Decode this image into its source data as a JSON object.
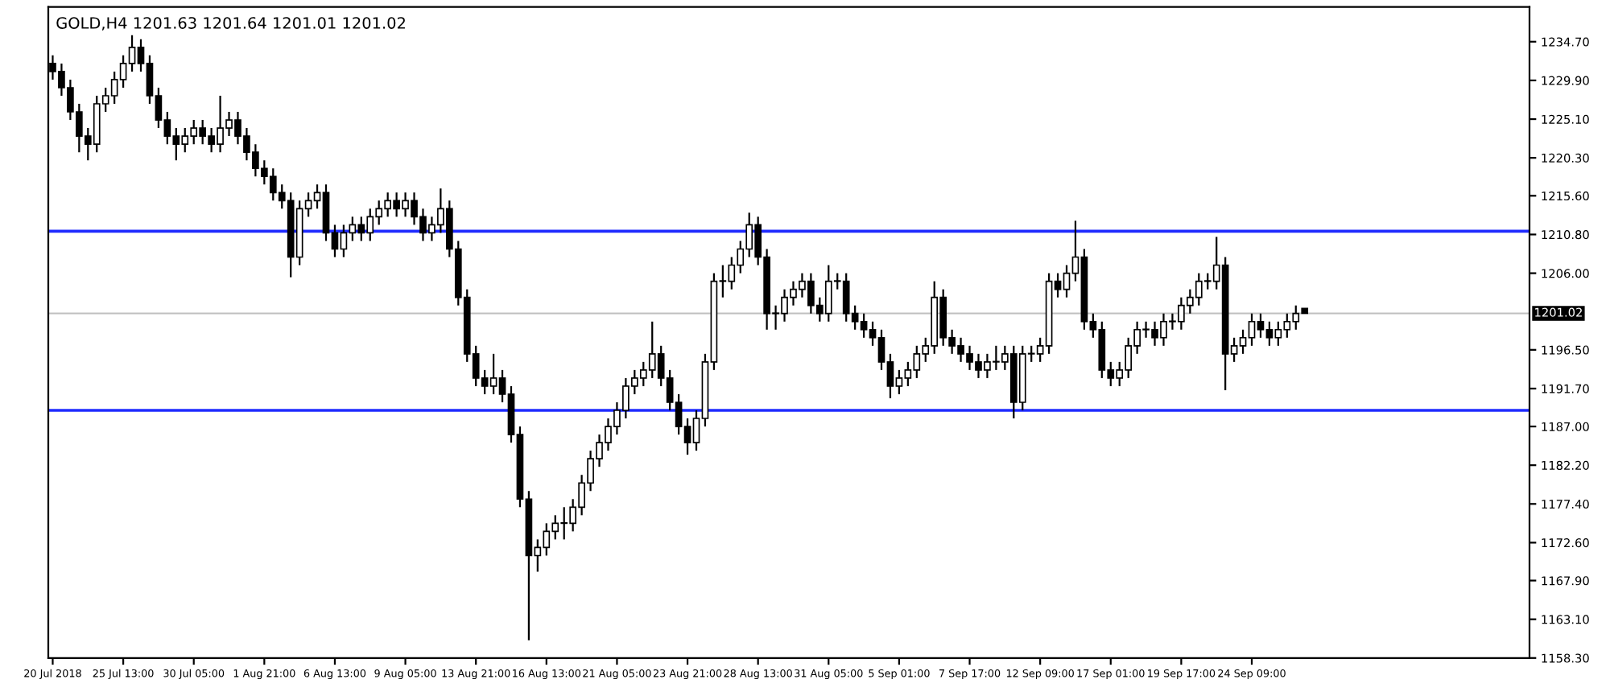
{
  "chart_data": {
    "type": "candlestick",
    "title": "GOLD,H4 1201.63 1201.64 1201.01 1201.02",
    "color": "#000000",
    "categories": [
      "20 Jul 2018",
      null,
      null,
      null,
      null,
      null,
      null,
      null,
      "25 Jul 13:00",
      null,
      null,
      null,
      null,
      null,
      null,
      null,
      "30 Jul 05:00",
      null,
      null,
      null,
      null,
      null,
      null,
      null,
      "1 Aug 21:00",
      null,
      null,
      null,
      null,
      null,
      null,
      null,
      "6 Aug 13:00",
      null,
      null,
      null,
      null,
      null,
      null,
      null,
      "9 Aug 05:00",
      null,
      null,
      null,
      null,
      null,
      null,
      null,
      "13 Aug 21:00",
      null,
      null,
      null,
      null,
      null,
      null,
      null,
      "16 Aug 13:00",
      null,
      null,
      null,
      null,
      null,
      null,
      null,
      "21 Aug 05:00",
      null,
      null,
      null,
      null,
      null,
      null,
      null,
      "23 Aug 21:00",
      null,
      null,
      null,
      null,
      null,
      null,
      null,
      "28 Aug 13:00",
      null,
      null,
      null,
      null,
      null,
      null,
      null,
      "31 Aug 05:00",
      null,
      null,
      null,
      null,
      null,
      null,
      null,
      "5 Sep 01:00",
      null,
      null,
      null,
      null,
      null,
      null,
      null,
      "7 Sep 17:00",
      null,
      null,
      null,
      null,
      null,
      null,
      null,
      "12 Sep 09:00",
      null,
      null,
      null,
      null,
      null,
      null,
      null,
      "17 Sep 01:00",
      null,
      null,
      null,
      null,
      null,
      null,
      null,
      "19 Sep 17:00",
      null,
      null,
      null,
      null,
      null,
      null,
      null,
      "24 Sep 09:00",
      null,
      null,
      null,
      null,
      null,
      null,
      null,
      null,
      null,
      null,
      null,
      null,
      null,
      null,
      null,
      null,
      null,
      null,
      null,
      null,
      null,
      null,
      null,
      null,
      null,
      null,
      null,
      null,
      null,
      null,
      null
    ],
    "ohlc": [
      [
        1232,
        1233,
        1230,
        1231
      ],
      [
        1231,
        1232,
        1228,
        1229
      ],
      [
        1229,
        1230,
        1225,
        1226
      ],
      [
        1226,
        1227,
        1221,
        1223
      ],
      [
        1223,
        1224,
        1220,
        1222
      ],
      [
        1222,
        1228,
        1221,
        1227
      ],
      [
        1227,
        1229,
        1226,
        1228
      ],
      [
        1228,
        1231,
        1227,
        1230
      ],
      [
        1230,
        1233,
        1229,
        1232
      ],
      [
        1232,
        1235.5,
        1231,
        1234
      ],
      [
        1234,
        1235,
        1231,
        1232
      ],
      [
        1232,
        1233,
        1227,
        1228
      ],
      [
        1228,
        1229,
        1224,
        1225
      ],
      [
        1225,
        1226,
        1222,
        1223
      ],
      [
        1223,
        1224,
        1220,
        1222
      ],
      [
        1222,
        1224,
        1221,
        1223
      ],
      [
        1223,
        1225,
        1222,
        1224
      ],
      [
        1224,
        1225,
        1222,
        1223
      ],
      [
        1223,
        1224,
        1221,
        1222
      ],
      [
        1222,
        1228,
        1221,
        1224
      ],
      [
        1224,
        1226,
        1223,
        1225
      ],
      [
        1225,
        1226,
        1222,
        1223
      ],
      [
        1223,
        1224,
        1220,
        1221
      ],
      [
        1221,
        1222,
        1218,
        1219
      ],
      [
        1219,
        1220,
        1217,
        1218
      ],
      [
        1218,
        1219,
        1215,
        1216
      ],
      [
        1216,
        1217,
        1214,
        1215
      ],
      [
        1215,
        1216,
        1205.5,
        1208
      ],
      [
        1208,
        1215,
        1207,
        1214
      ],
      [
        1214,
        1216,
        1213,
        1215
      ],
      [
        1215,
        1217,
        1214,
        1216
      ],
      [
        1216,
        1217,
        1210,
        1211
      ],
      [
        1211,
        1212,
        1208,
        1209
      ],
      [
        1209,
        1212,
        1208,
        1211
      ],
      [
        1211,
        1213,
        1210,
        1212
      ],
      [
        1212,
        1213,
        1210,
        1211
      ],
      [
        1211,
        1214,
        1210,
        1213
      ],
      [
        1213,
        1215,
        1212,
        1214
      ],
      [
        1214,
        1216,
        1213,
        1215
      ],
      [
        1215,
        1216,
        1213,
        1214
      ],
      [
        1214,
        1216,
        1213,
        1215
      ],
      [
        1215,
        1216,
        1212,
        1213
      ],
      [
        1213,
        1214,
        1210,
        1211
      ],
      [
        1211,
        1213,
        1210,
        1212
      ],
      [
        1212,
        1216.5,
        1211,
        1214
      ],
      [
        1214,
        1215,
        1208,
        1209
      ],
      [
        1209,
        1210,
        1202,
        1203
      ],
      [
        1203,
        1204,
        1195,
        1196
      ],
      [
        1196,
        1197,
        1192,
        1193
      ],
      [
        1193,
        1194,
        1191,
        1192
      ],
      [
        1192,
        1196,
        1191,
        1193
      ],
      [
        1193,
        1194,
        1190,
        1191
      ],
      [
        1191,
        1192,
        1185,
        1186
      ],
      [
        1186,
        1187,
        1177,
        1178
      ],
      [
        1178,
        1179,
        1160.5,
        1171
      ],
      [
        1171,
        1173,
        1169,
        1172
      ],
      [
        1172,
        1175,
        1171,
        1174
      ],
      [
        1174,
        1176,
        1173,
        1175
      ],
      [
        1175,
        1177,
        1173,
        1175
      ],
      [
        1175,
        1178,
        1174,
        1177
      ],
      [
        1177,
        1181,
        1176,
        1180
      ],
      [
        1180,
        1184,
        1179,
        1183
      ],
      [
        1183,
        1186,
        1182,
        1185
      ],
      [
        1185,
        1188,
        1184,
        1187
      ],
      [
        1187,
        1190,
        1186,
        1189
      ],
      [
        1189,
        1193,
        1188,
        1192
      ],
      [
        1192,
        1194,
        1191,
        1193
      ],
      [
        1193,
        1195,
        1192,
        1194
      ],
      [
        1194,
        1200,
        1193,
        1196
      ],
      [
        1196,
        1197,
        1192,
        1193
      ],
      [
        1193,
        1194,
        1189,
        1190
      ],
      [
        1190,
        1191,
        1186,
        1187
      ],
      [
        1187,
        1188,
        1183.5,
        1185
      ],
      [
        1185,
        1189,
        1184,
        1188
      ],
      [
        1188,
        1196,
        1187,
        1195
      ],
      [
        1195,
        1206,
        1194,
        1205
      ],
      [
        1205,
        1207,
        1203,
        1205
      ],
      [
        1205,
        1208,
        1204,
        1207
      ],
      [
        1207,
        1210,
        1206,
        1209
      ],
      [
        1209,
        1213.5,
        1208,
        1212
      ],
      [
        1212,
        1213,
        1207,
        1208
      ],
      [
        1208,
        1209,
        1199,
        1201
      ],
      [
        1201,
        1202,
        1199,
        1201
      ],
      [
        1201,
        1204,
        1200,
        1203
      ],
      [
        1203,
        1205,
        1202,
        1204
      ],
      [
        1204,
        1206,
        1203,
        1205
      ],
      [
        1205,
        1206,
        1201,
        1202
      ],
      [
        1202,
        1203,
        1200,
        1201
      ],
      [
        1201,
        1207,
        1200,
        1205
      ],
      [
        1205,
        1206,
        1204,
        1205
      ],
      [
        1205,
        1206,
        1200,
        1201
      ],
      [
        1201,
        1202,
        1199,
        1200
      ],
      [
        1200,
        1201,
        1198,
        1199
      ],
      [
        1199,
        1200,
        1197,
        1198
      ],
      [
        1198,
        1199,
        1194,
        1195
      ],
      [
        1195,
        1196,
        1190.5,
        1192
      ],
      [
        1192,
        1194,
        1191,
        1193
      ],
      [
        1193,
        1195,
        1192,
        1194
      ],
      [
        1194,
        1197,
        1193,
        1196
      ],
      [
        1196,
        1198,
        1195,
        1197
      ],
      [
        1197,
        1205,
        1196,
        1203
      ],
      [
        1203,
        1204,
        1197,
        1198
      ],
      [
        1198,
        1199,
        1196,
        1197
      ],
      [
        1197,
        1198,
        1195,
        1196
      ],
      [
        1196,
        1197,
        1194,
        1195
      ],
      [
        1195,
        1196,
        1193,
        1194
      ],
      [
        1194,
        1196,
        1193,
        1195
      ],
      [
        1195,
        1197,
        1194,
        1195
      ],
      [
        1195,
        1197,
        1194,
        1196
      ],
      [
        1196,
        1197,
        1188,
        1190
      ],
      [
        1190,
        1197,
        1189,
        1196
      ],
      [
        1196,
        1197,
        1195,
        1196
      ],
      [
        1196,
        1198,
        1195,
        1197
      ],
      [
        1197,
        1206,
        1196,
        1205
      ],
      [
        1205,
        1206,
        1203,
        1204
      ],
      [
        1204,
        1207,
        1203,
        1206
      ],
      [
        1206,
        1212.5,
        1205,
        1208
      ],
      [
        1208,
        1209,
        1199,
        1200
      ],
      [
        1200,
        1201,
        1198,
        1199
      ],
      [
        1199,
        1200,
        1193,
        1194
      ],
      [
        1194,
        1195,
        1192,
        1193
      ],
      [
        1193,
        1195,
        1192,
        1194
      ],
      [
        1194,
        1198,
        1193,
        1197
      ],
      [
        1197,
        1200,
        1196,
        1199
      ],
      [
        1199,
        1200,
        1198,
        1199
      ],
      [
        1199,
        1200,
        1197,
        1198
      ],
      [
        1198,
        1201,
        1197,
        1200
      ],
      [
        1200,
        1201,
        1199,
        1200
      ],
      [
        1200,
        1203,
        1199,
        1202
      ],
      [
        1202,
        1204,
        1201,
        1203
      ],
      [
        1203,
        1206,
        1202,
        1205
      ],
      [
        1205,
        1206,
        1204,
        1205
      ],
      [
        1205,
        1210.5,
        1204,
        1207
      ],
      [
        1207,
        1208,
        1191.5,
        1196
      ],
      [
        1196,
        1198,
        1195,
        1197
      ],
      [
        1197,
        1199,
        1196,
        1198
      ],
      [
        1198,
        1201,
        1197,
        1200
      ],
      [
        1200,
        1201,
        1198,
        1199
      ],
      [
        1199,
        1200,
        1197,
        1198
      ],
      [
        1198,
        1200,
        1197,
        1199
      ],
      [
        1199,
        1201,
        1198,
        1200
      ],
      [
        1200,
        1202,
        1199,
        1201
      ],
      [
        1201.63,
        1201.64,
        1201.01,
        1201.02
      ],
      null,
      null,
      null,
      null,
      null,
      null,
      null,
      null,
      null,
      null,
      null,
      null,
      null,
      null,
      null,
      null,
      null,
      null,
      null,
      null,
      null,
      null,
      null,
      null,
      null
    ],
    "ylim": [
      1158.3,
      1239.0
    ],
    "yticks": [
      {
        "value": 1158.3,
        "label": "1158.30"
      },
      {
        "value": 1163.1,
        "label": "1163.10"
      },
      {
        "value": 1167.9,
        "label": "1167.90"
      },
      {
        "value": 1172.6,
        "label": "1172.60"
      },
      {
        "value": 1177.4,
        "label": "1177.40"
      },
      {
        "value": 1182.2,
        "label": "1182.20"
      },
      {
        "value": 1187.0,
        "label": "1187.00"
      },
      {
        "value": 1191.7,
        "label": "1191.70"
      },
      {
        "value": 1196.5,
        "label": "1196.50"
      },
      {
        "value": 1206.0,
        "label": "1206.00"
      },
      {
        "value": 1210.8,
        "label": "1210.80"
      },
      {
        "value": 1215.6,
        "label": "1215.60"
      },
      {
        "value": 1220.3,
        "label": "1220.30"
      },
      {
        "value": 1225.1,
        "label": "1225.10"
      },
      {
        "value": 1229.9,
        "label": "1229.90"
      },
      {
        "value": 1234.7,
        "label": "1234.70"
      }
    ],
    "ref_lines": [
      {
        "axis": "y",
        "value": 1211.2,
        "color": "#1f2bff",
        "line_style": "solid"
      },
      {
        "axis": "y",
        "value": 1189.0,
        "color": "#1f2bff",
        "line_style": "solid"
      },
      {
        "axis": "y",
        "value": 1201.02,
        "label": "1201.02",
        "color": "#c0c0c0",
        "line_style": "solid"
      }
    ],
    "grid": false,
    "legend": false
  }
}
